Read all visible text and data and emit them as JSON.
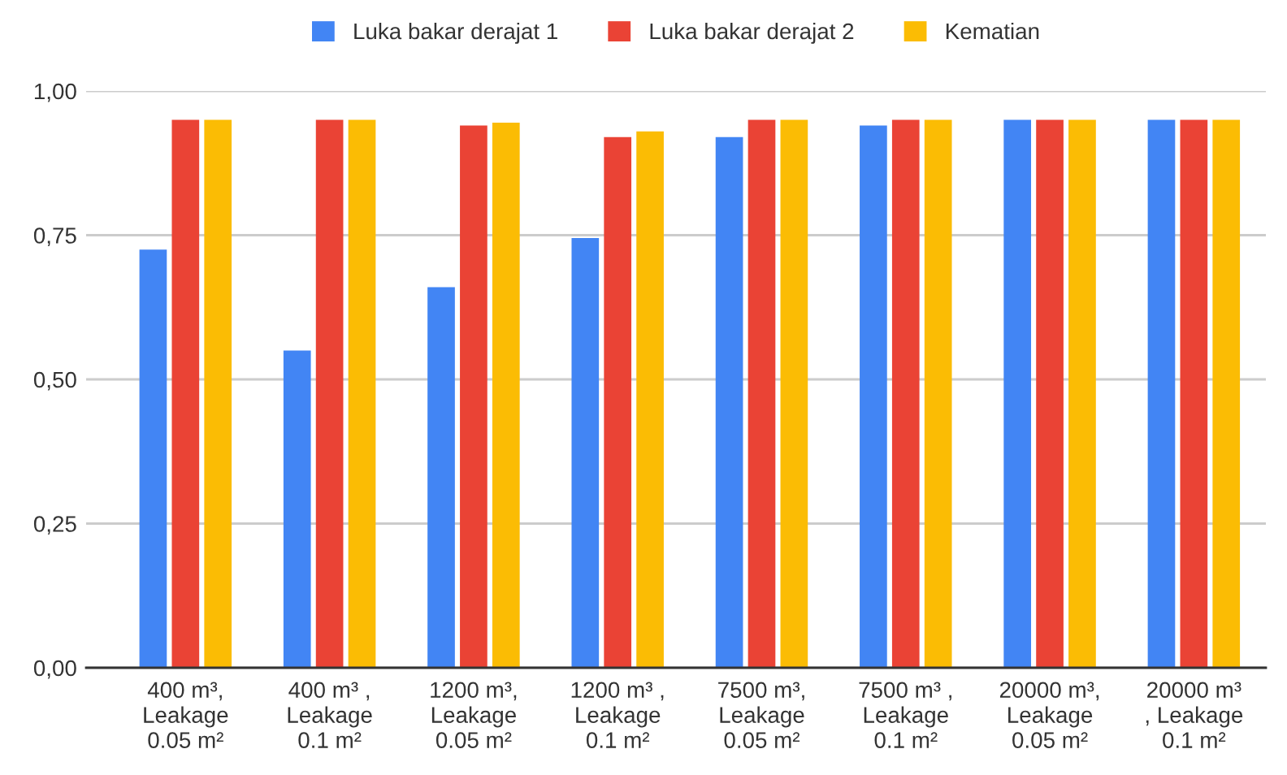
{
  "chart_data": {
    "type": "bar",
    "categories": [
      "400 m³,\nLeakage\n0.05 m²",
      "400 m³ ,\nLeakage\n0.1 m²",
      "1200 m³,\nLeakage\n0.05 m²",
      "1200 m³ ,\nLeakage\n0.1 m²",
      "7500 m³,\nLeakage\n0.05 m²",
      "7500 m³ ,\nLeakage\n0.1 m²",
      "20000 m³,\nLeakage\n0.05 m²",
      "20000 m³\n, Leakage\n0.1 m²"
    ],
    "series": [
      {
        "name": "Luka bakar derajat 1",
        "color": "#4285f4",
        "values": [
          0.725,
          0.55,
          0.66,
          0.745,
          0.92,
          0.94,
          0.95,
          0.95
        ]
      },
      {
        "name": "Luka bakar derajat 2",
        "color": "#ea4335",
        "values": [
          0.95,
          0.95,
          0.94,
          0.92,
          0.95,
          0.95,
          0.95,
          0.95
        ]
      },
      {
        "name": "Kematian",
        "color": "#fbbc04",
        "values": [
          0.95,
          0.95,
          0.945,
          0.93,
          0.95,
          0.95,
          0.95,
          0.95
        ]
      }
    ],
    "ylim": [
      0,
      1
    ],
    "yticks": [
      {
        "value": 0,
        "label": "0,00"
      },
      {
        "value": 0.25,
        "label": "0,25"
      },
      {
        "value": 0.5,
        "label": "0,50"
      },
      {
        "value": 0.75,
        "label": "0,75"
      },
      {
        "value": 1,
        "label": "1,00"
      }
    ],
    "grid": "y",
    "legend": "top"
  }
}
